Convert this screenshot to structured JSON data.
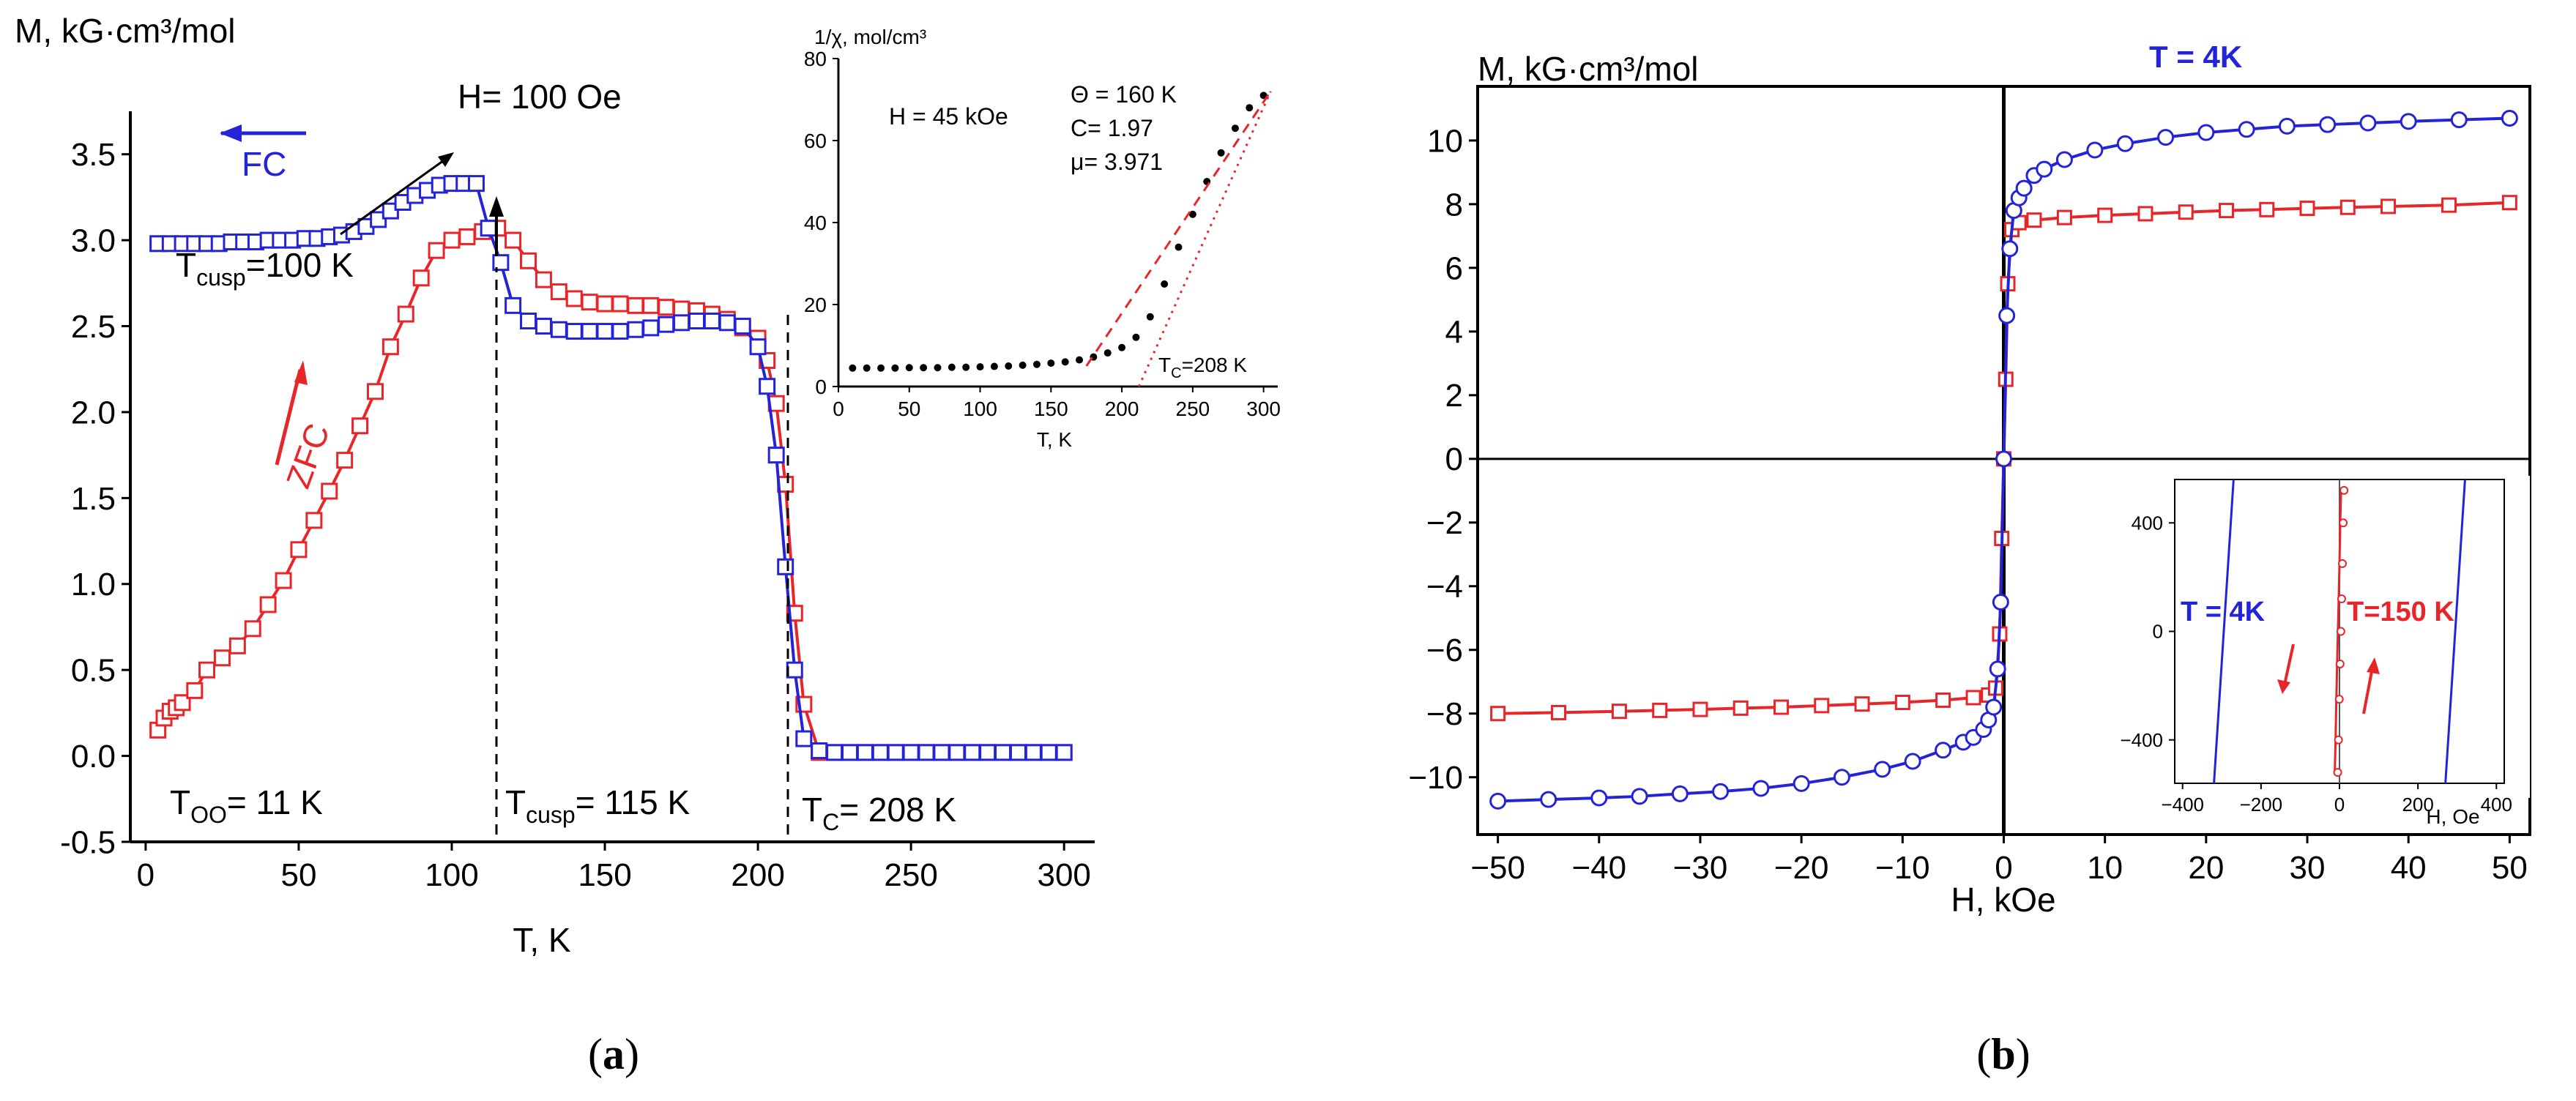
{
  "colors": {
    "fc": "#2323d8",
    "zfc": "#e8262a",
    "blue": "#2323d8",
    "red": "#e8262a",
    "axis": "#000000"
  },
  "panel_a": {
    "caption": "a",
    "field_label": "H= 100 Oe",
    "fc_label": "FC",
    "zfc_label": "ZFC",
    "t_cusp_fc": {
      "main": "T",
      "sub": "cusp",
      "rest": "=100 K"
    },
    "t_oo": {
      "main": "T",
      "sub": "OO",
      "rest": "= 11 K"
    },
    "t_cusp_zfc": {
      "main": "T",
      "sub": "cusp",
      "rest": "= 115 K"
    },
    "t_c": {
      "main": "T",
      "sub": "C",
      "rest": "= 208 K"
    },
    "inset": {
      "ylabel": "1/χ, mol/cm³",
      "xlabel": "T, K",
      "field": "H = 45 kOe",
      "theta": "Θ = 160 K",
      "c": "C= 1.97",
      "mu": "μ= 3.971",
      "tc_main": "T",
      "tc_sub": "C",
      "tc_rest": "=208 K"
    }
  },
  "panel_b": {
    "caption": "b",
    "t4_label": "T = 4K",
    "inset": {
      "xlabel": "H, Oe",
      "t4_label": "T = 4K",
      "t150_label": "T=150 K"
    }
  },
  "chart_data": [
    {
      "type": "line",
      "title": "",
      "xlabel": "T, K",
      "ylabel": "M, kG·cm³/mol",
      "xlim": [
        -5,
        310
      ],
      "ylim": [
        -0.5,
        3.75
      ],
      "xticks": [
        0,
        50,
        100,
        150,
        200,
        250,
        300
      ],
      "yticks": [
        -0.5,
        0.0,
        0.5,
        1.0,
        1.5,
        2.0,
        2.5,
        3.0,
        3.5
      ],
      "series": [
        {
          "name": "FC",
          "color": "#2323d8",
          "marker": "square",
          "x": [
            4,
            8,
            12,
            16,
            20,
            24,
            28,
            32,
            36,
            40,
            44,
            48,
            52,
            56,
            60,
            64,
            68,
            72,
            76,
            80,
            84,
            88,
            92,
            96,
            100,
            104,
            108,
            112,
            116,
            120,
            125,
            130,
            135,
            140,
            145,
            150,
            155,
            160,
            165,
            170,
            175,
            180,
            185,
            190,
            195,
            200,
            203,
            206,
            209,
            212,
            215,
            220,
            225,
            230,
            235,
            240,
            245,
            250,
            255,
            260,
            265,
            270,
            275,
            280,
            285,
            290,
            295,
            300
          ],
          "y": [
            2.98,
            2.98,
            2.98,
            2.98,
            2.98,
            2.98,
            2.99,
            2.99,
            2.99,
            3.0,
            3.0,
            3.0,
            3.01,
            3.01,
            3.02,
            3.03,
            3.05,
            3.08,
            3.12,
            3.17,
            3.22,
            3.26,
            3.29,
            3.32,
            3.33,
            3.33,
            3.33,
            3.07,
            2.87,
            2.62,
            2.53,
            2.5,
            2.48,
            2.47,
            2.47,
            2.47,
            2.47,
            2.48,
            2.49,
            2.51,
            2.52,
            2.53,
            2.53,
            2.52,
            2.5,
            2.38,
            2.15,
            1.75,
            1.1,
            0.5,
            0.1,
            0.03,
            0.02,
            0.02,
            0.02,
            0.02,
            0.02,
            0.02,
            0.02,
            0.02,
            0.02,
            0.02,
            0.02,
            0.02,
            0.02,
            0.02,
            0.02,
            0.02
          ]
        },
        {
          "name": "ZFC",
          "color": "#e8262a",
          "marker": "square",
          "x": [
            4,
            6,
            8,
            10,
            12,
            16,
            20,
            25,
            30,
            35,
            40,
            45,
            50,
            55,
            60,
            65,
            70,
            75,
            80,
            85,
            90,
            95,
            100,
            105,
            110,
            115,
            120,
            125,
            130,
            135,
            140,
            145,
            150,
            155,
            160,
            165,
            170,
            175,
            180,
            185,
            190,
            195,
            200,
            203,
            206,
            209,
            212,
            215,
            220,
            225,
            230,
            235,
            240,
            245,
            250,
            255,
            260,
            265,
            270,
            275,
            280,
            285,
            290,
            295,
            300
          ],
          "y": [
            0.15,
            0.22,
            0.26,
            0.28,
            0.31,
            0.38,
            0.5,
            0.57,
            0.64,
            0.74,
            0.88,
            1.02,
            1.2,
            1.37,
            1.54,
            1.72,
            1.92,
            2.12,
            2.38,
            2.57,
            2.78,
            2.94,
            3.0,
            3.02,
            3.05,
            3.07,
            3.0,
            2.88,
            2.77,
            2.7,
            2.66,
            2.64,
            2.63,
            2.63,
            2.62,
            2.62,
            2.61,
            2.6,
            2.59,
            2.57,
            2.54,
            2.49,
            2.43,
            2.3,
            2.05,
            1.58,
            0.83,
            0.3,
            0.02,
            0.02,
            0.02,
            0.02,
            0.02,
            0.02,
            0.02,
            0.02,
            0.02,
            0.02,
            0.02,
            0.02,
            0.02,
            0.02,
            0.02,
            0.02,
            0.02
          ]
        }
      ]
    },
    {
      "type": "scatter",
      "title": "inset",
      "xlabel": "T, K",
      "ylabel": "1/χ, mol/cm³",
      "xlim": [
        0,
        310
      ],
      "ylim": [
        0,
        80
      ],
      "xticks": [
        0,
        50,
        100,
        150,
        200,
        250,
        300
      ],
      "yticks": [
        0,
        20,
        40,
        60,
        80
      ],
      "series": [
        {
          "name": "1/χ",
          "color": "#000000",
          "x": [
            10,
            20,
            30,
            40,
            50,
            60,
            70,
            80,
            90,
            100,
            110,
            120,
            130,
            140,
            150,
            160,
            170,
            180,
            190,
            200,
            210,
            220,
            230,
            240,
            250,
            260,
            270,
            280,
            290,
            300
          ],
          "y": [
            4.5,
            4.5,
            4.5,
            4.5,
            4.6,
            4.6,
            4.6,
            4.7,
            4.7,
            4.8,
            4.9,
            5.0,
            5.2,
            5.4,
            5.7,
            6.0,
            6.5,
            7.2,
            8.2,
            9.5,
            12,
            17,
            25,
            34,
            42,
            50,
            57,
            63,
            68,
            71
          ]
        },
        {
          "name": "fit (dashed)",
          "color": "#e8262a",
          "x": [
            175,
            305
          ],
          "y": [
            5,
            72
          ]
        },
        {
          "name": "fit (dotted)",
          "color": "#e8262a",
          "x": [
            212,
            305
          ],
          "y": [
            0,
            72
          ]
        }
      ]
    },
    {
      "type": "line",
      "title": "",
      "xlabel": "H, kOe",
      "ylabel": "M, kG·cm³/mol",
      "xlim": [
        -52,
        52
      ],
      "ylim": [
        -11.8,
        11.7
      ],
      "xticks": [
        -50,
        -40,
        -30,
        -20,
        -10,
        0,
        10,
        20,
        30,
        40,
        50
      ],
      "yticks": [
        -10,
        -8,
        -6,
        -4,
        -2,
        0,
        2,
        4,
        6,
        8,
        10
      ],
      "series": [
        {
          "name": "T = 4K",
          "color": "#2323d8",
          "marker": "circle",
          "x": [
            -50,
            -45,
            -40,
            -36,
            -32,
            -28,
            -24,
            -20,
            -16,
            -12,
            -9,
            -6,
            -4,
            -3,
            -2,
            -1.5,
            -1,
            -0.6,
            -0.3,
            0,
            0.3,
            0.6,
            1,
            1.5,
            2,
            3,
            4,
            6,
            9,
            12,
            16,
            20,
            24,
            28,
            32,
            36,
            40,
            45,
            50
          ],
          "y": [
            -10.75,
            -10.7,
            -10.65,
            -10.6,
            -10.52,
            -10.45,
            -10.35,
            -10.2,
            -10.0,
            -9.75,
            -9.5,
            -9.15,
            -8.9,
            -8.75,
            -8.5,
            -8.2,
            -7.8,
            -6.6,
            -4.5,
            0,
            4.5,
            6.6,
            7.8,
            8.2,
            8.5,
            8.9,
            9.1,
            9.4,
            9.7,
            9.9,
            10.1,
            10.25,
            10.35,
            10.45,
            10.5,
            10.55,
            10.6,
            10.65,
            10.7
          ]
        },
        {
          "name": "T = 150K",
          "color": "#e8262a",
          "marker": "square",
          "x": [
            -50,
            -44,
            -38,
            -34,
            -30,
            -26,
            -22,
            -18,
            -14,
            -10,
            -6,
            -3,
            -1.5,
            -0.8,
            -0.4,
            -0.2,
            0,
            0.2,
            0.4,
            0.8,
            1.5,
            3,
            6,
            10,
            14,
            18,
            22,
            26,
            30,
            34,
            38,
            44,
            50
          ],
          "y": [
            -8.0,
            -7.97,
            -7.93,
            -7.9,
            -7.87,
            -7.83,
            -7.8,
            -7.75,
            -7.7,
            -7.65,
            -7.58,
            -7.5,
            -7.42,
            -7.2,
            -5.5,
            -2.5,
            0,
            2.5,
            5.5,
            7.2,
            7.42,
            7.5,
            7.58,
            7.65,
            7.7,
            7.75,
            7.8,
            7.83,
            7.87,
            7.9,
            7.93,
            7.97,
            8.05
          ]
        }
      ]
    },
    {
      "type": "line",
      "title": "inset",
      "xlabel": "H, Oe",
      "ylabel": "",
      "xlim": [
        -420,
        420
      ],
      "ylim": [
        -560,
        560
      ],
      "xticks": [
        -400,
        -200,
        0,
        200,
        400
      ],
      "yticks": [
        -400,
        0,
        400
      ],
      "series": [
        {
          "name": "T = 4K (descending)",
          "color": "#2323d8",
          "x": [
            -270,
            -320
          ],
          "y": [
            560,
            -560
          ]
        },
        {
          "name": "T = 4K (ascending)",
          "color": "#2323d8",
          "x": [
            320,
            270
          ],
          "y": [
            560,
            -560
          ]
        },
        {
          "name": "T=150 K",
          "color": "#e8262a",
          "x": [
            -12,
            -10,
            -8,
            -6,
            -4,
            -2,
            0,
            2,
            4
          ],
          "y": [
            -520,
            -400,
            -250,
            -120,
            0,
            120,
            250,
            400,
            520
          ]
        }
      ]
    }
  ]
}
